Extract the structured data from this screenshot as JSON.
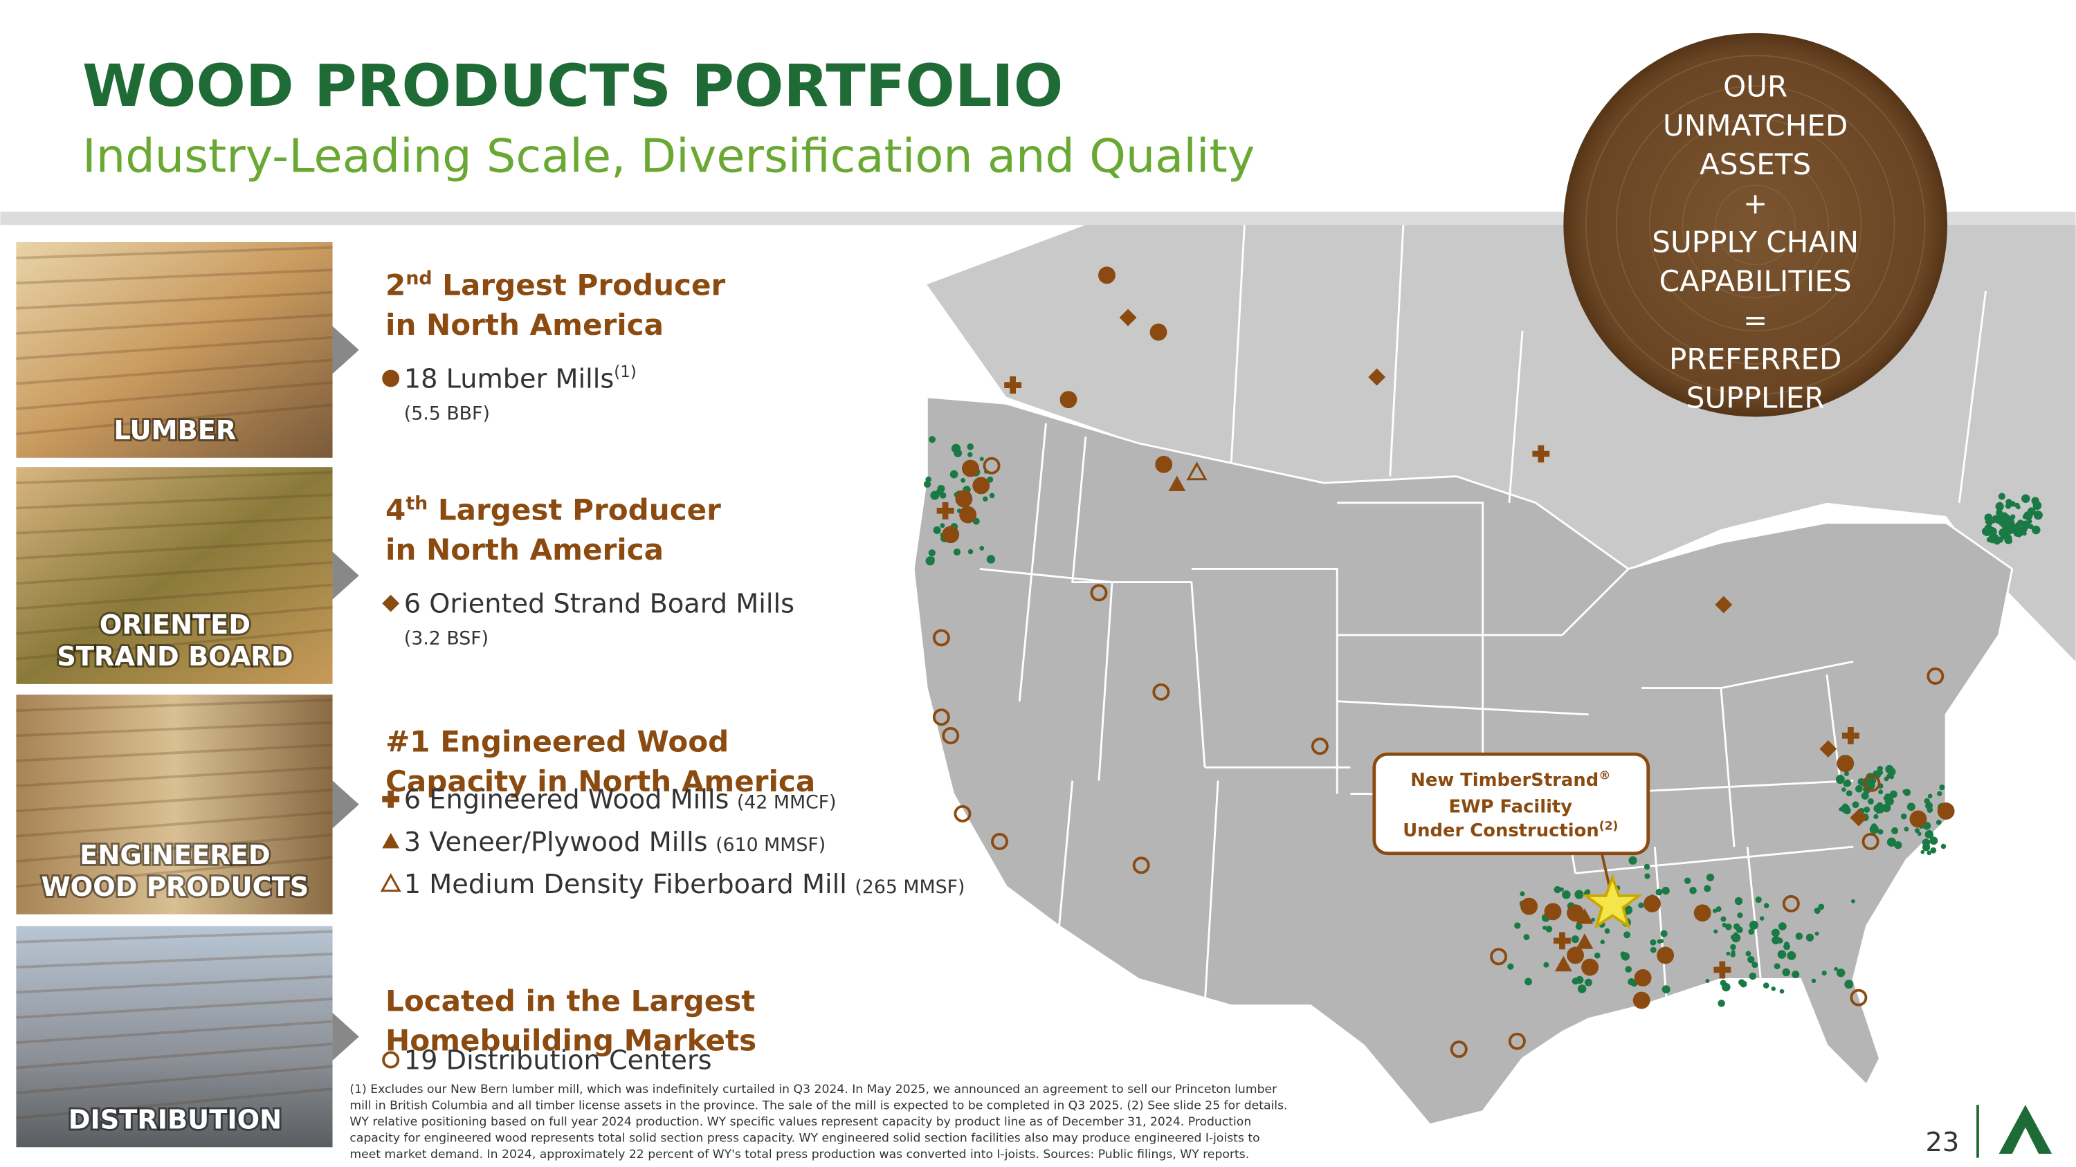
{
  "header": {
    "title": "WOOD PRODUCTS PORTFOLIO",
    "subtitle": "Industry-Leading Scale, Diversification and Quality"
  },
  "badge": [
    "OUR",
    "UNMATCHED",
    "ASSETS",
    "+",
    "SUPPLY CHAIN",
    "CAPABILITIES",
    "=",
    "PREFERRED",
    "SUPPLIER"
  ],
  "sections": [
    {
      "label": [
        "LUMBER"
      ],
      "heading_number": "2",
      "heading_suffix": "nd",
      "heading_rest": " Largest Producer",
      "heading_line2": "in North America",
      "items": [
        {
          "text": "18 Lumber Mills",
          "note": "(1)",
          "detail": "(5.5 BBF)"
        }
      ]
    },
    {
      "label": [
        "ORIENTED",
        "STRAND BOARD"
      ],
      "heading_number": "4",
      "heading_suffix": "th",
      "heading_rest": " Largest Producer",
      "heading_line2": "in North America",
      "items": [
        {
          "text": "6 Oriented Strand Board Mills",
          "detail": "(3.2 BSF)"
        }
      ]
    },
    {
      "label": [
        "ENGINEERED",
        "WOOD PRODUCTS"
      ],
      "heading_lines": [
        "#1 Engineered Wood",
        "Capacity in North America"
      ],
      "items": [
        {
          "text": "6 Engineered Wood Mills",
          "detail": "(42 MMCF)"
        },
        {
          "text": "3 Veneer/Plywood Mills",
          "detail": "(610 MMSF)"
        },
        {
          "text": "1 Medium Density Fiberboard Mill",
          "detail": "(265 MMSF)"
        }
      ]
    },
    {
      "label": [
        "DISTRIBUTION"
      ],
      "heading_lines": [
        "Located in the Largest",
        "Homebuilding Markets"
      ],
      "items": [
        {
          "text": "19 Distribution Centers"
        }
      ]
    }
  ],
  "callout": {
    "line1": "New TimberStrand",
    "reg": "®",
    "line2": "EWP Facility",
    "line3": "Under Construction",
    "note": "(2)"
  },
  "footnote": [
    "(1) Excludes our New Bern lumber mill, which was indefinitely curtailed in Q3 2024. In May 2025, we announced an agreement to sell our Princeton lumber",
    "mill in British Columbia and all timber license assets in the province. The sale of the mill is expected to be completed in Q3 2025. (2) See slide 25 for details.",
    "WY relative positioning based on full year 2024 production. WY specific values represent capacity by product line as of December 31, 2024.  Production",
    "capacity for engineered wood represents total solid section press capacity. WY engineered solid section facilities also may produce engineered I-joists to",
    "meet market demand. In 2024, approximately 22 percent of WY's total press production was converted into I-joists. Sources: Public filings, WY reports."
  ],
  "page_number": "23"
}
